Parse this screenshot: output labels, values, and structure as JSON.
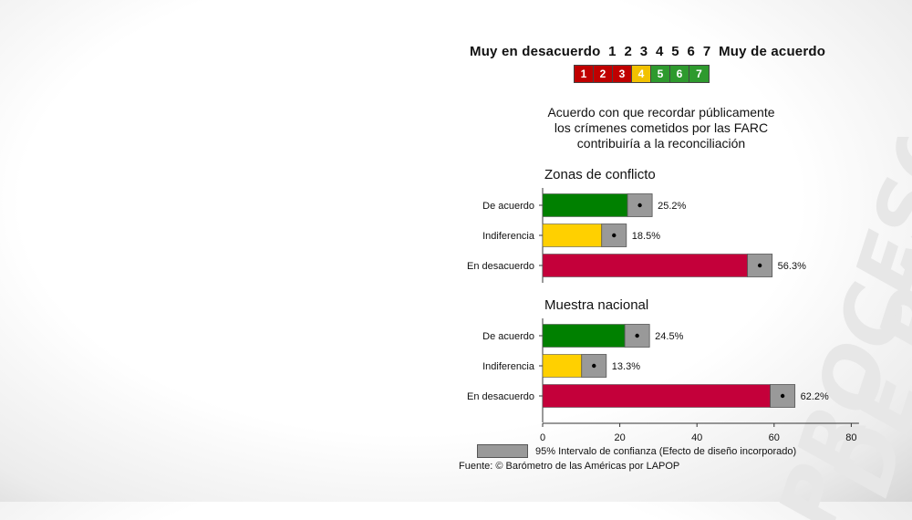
{
  "scale": {
    "label_text": "Muy en desacuerdo  1  2  3  4  5  6  7  Muy de acuerdo",
    "boxes": [
      {
        "label": "1",
        "color": "#c00000"
      },
      {
        "label": "2",
        "color": "#c00000"
      },
      {
        "label": "3",
        "color": "#c00000"
      },
      {
        "label": "4",
        "color": "#f2c200"
      },
      {
        "label": "5",
        "color": "#2e9a2e"
      },
      {
        "label": "6",
        "color": "#2e9a2e"
      },
      {
        "label": "7",
        "color": "#2e9a2e"
      }
    ]
  },
  "chart_data": {
    "type": "bar",
    "orientation": "horizontal",
    "title_lines": [
      "Acuerdo con que recordar públicamente",
      "los crímenes cometidos por las FARC",
      "contribuiría a la reconciliación"
    ],
    "xlim": [
      0,
      80
    ],
    "xticks": [
      0,
      20,
      40,
      60,
      80
    ],
    "ci_halfwidth": 3.2,
    "colors": {
      "De acuerdo": "#008000",
      "Indiferencia": "#ffd000",
      "En desacuerdo": "#c4003a",
      "ci": "#999999"
    },
    "panels": [
      {
        "title": "Zonas de conflicto",
        "categories": [
          "De acuerdo",
          "Indiferencia",
          "En desacuerdo"
        ],
        "values": [
          25.2,
          18.5,
          56.3
        ],
        "labels": [
          "25.2%",
          "18.5%",
          "56.3%"
        ]
      },
      {
        "title": "Muestra nacional",
        "categories": [
          "De acuerdo",
          "Indiferencia",
          "En desacuerdo"
        ],
        "values": [
          24.5,
          13.3,
          62.2
        ],
        "labels": [
          "24.5%",
          "13.3%",
          "62.2%"
        ]
      }
    ],
    "legend": "95% Intervalo de confianza (Efecto de diseño incorporado)",
    "source": "Fuente: © Barómetro de las Américas por LAPOP"
  },
  "watermark": {
    "line1": "PROCESO",
    "line2": "DE PAZ"
  }
}
